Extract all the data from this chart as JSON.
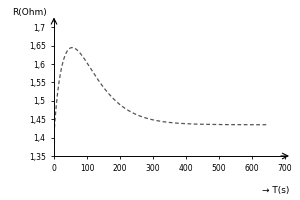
{
  "title": "",
  "xlabel": "→ T(s)",
  "ylabel": "R(Ohm)",
  "xlim": [
    0,
    700
  ],
  "ylim": [
    1.35,
    1.72
  ],
  "xticks": [
    0,
    100,
    200,
    300,
    400,
    500,
    600,
    700
  ],
  "yticks": [
    1.35,
    1.4,
    1.45,
    1.5,
    1.55,
    1.6,
    1.65,
    1.7
  ],
  "ytick_labels": [
    "1,35",
    "1,4",
    "1,45",
    "1,5",
    "1,55",
    "1,6",
    "1,65",
    "1,7"
  ],
  "xtick_labels": [
    "0",
    "100",
    "200",
    "300",
    "400",
    "500",
    "600",
    "700"
  ],
  "line_color": "#555555",
  "curve_start_y": 1.41,
  "peak_t": 55,
  "peak_y": 1.645,
  "asymptote_y": 1.435,
  "background_color": "#ffffff",
  "ylabel_fontsize": 6.5,
  "xlabel_fontsize": 6.5,
  "tick_fontsize": 5.5
}
